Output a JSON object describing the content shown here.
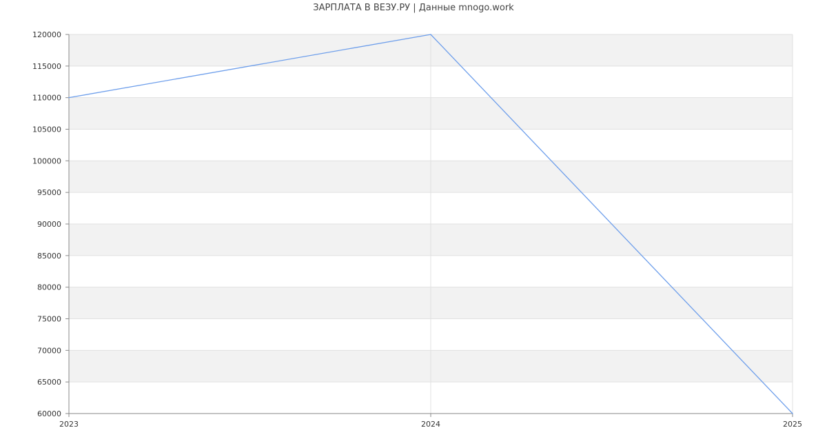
{
  "chart_data": {
    "type": "line",
    "title": "ЗАРПЛАТА В ВЕЗУ.РУ | Данные mnogo.work",
    "xlabel": "",
    "ylabel": "",
    "x": [
      "2023",
      "2024",
      "2025"
    ],
    "series": [
      {
        "values": [
          110000,
          120000,
          60000
        ]
      }
    ],
    "ylim": [
      60000,
      120000
    ],
    "y_ticks": [
      60000,
      65000,
      70000,
      75000,
      80000,
      85000,
      90000,
      95000,
      100000,
      105000,
      110000,
      115000,
      120000
    ],
    "grid": true,
    "band_fill": "alternating",
    "line_color": "#6d9eeb",
    "band_color": "#f2f2f2",
    "gridline_color": "#e0e0e0",
    "axis_color": "#888888",
    "text_color": "#333333"
  }
}
